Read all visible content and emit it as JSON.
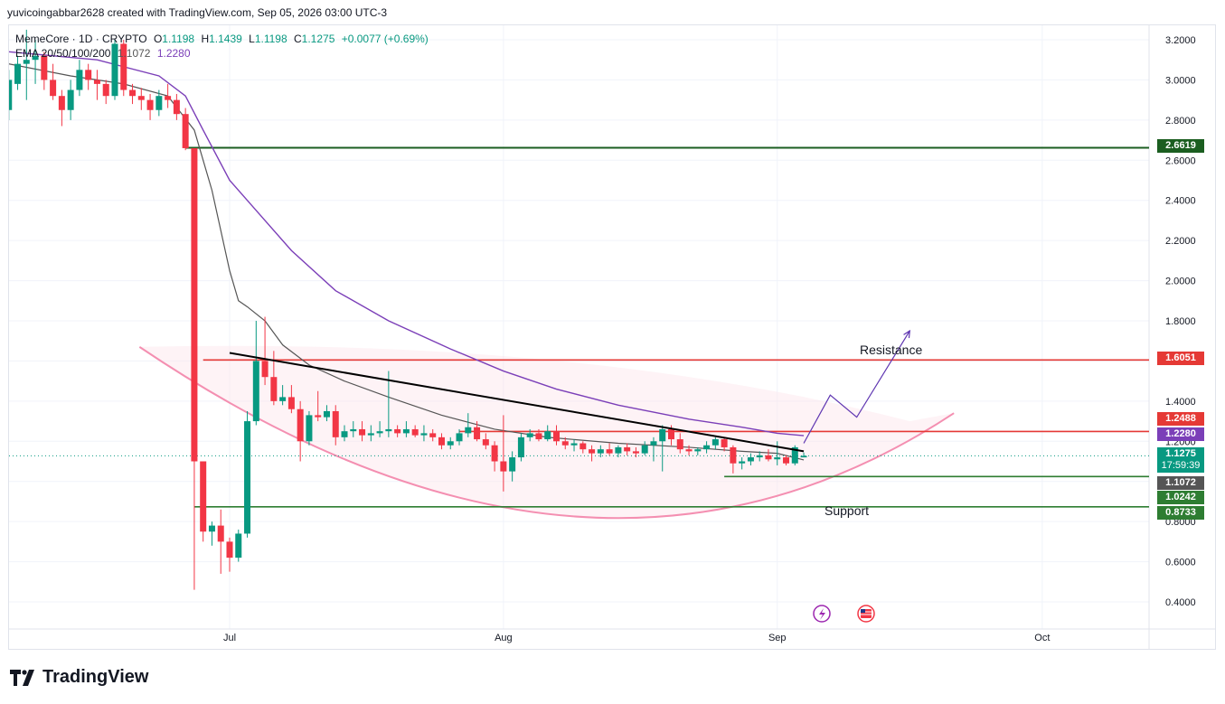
{
  "header": {
    "text": "yuvicoingabbar2628 created with TradingView.com, Sep 05, 2026 03:00 UTC-3"
  },
  "legend": {
    "symbol": "MemeCore · 1D · CRYPTO",
    "open_label": "O",
    "open": "1.1198",
    "high_label": "H",
    "high": "1.1439",
    "low_label": "L",
    "low": "1.1198",
    "close_label": "C",
    "close": "1.1275",
    "change": "+0.0077 (+0.69%)",
    "ema_label": "EMA 20/50/100/200",
    "ema_fast": "1.1072",
    "ema_slow": "1.2280"
  },
  "price_tags": {
    "level_top": "2.6619",
    "resistance": "1.6051",
    "level_mid": "1.2488",
    "ema_slow": "1.2280",
    "last_price": "1.1275",
    "countdown": "17:59:39",
    "ema_fast": "1.1072",
    "support_top": "1.0242",
    "support_bottom": "0.8733"
  },
  "annotations": {
    "resistance": "Resistance",
    "support": "Support"
  },
  "brand": {
    "name": "TradingView"
  },
  "colors": {
    "up": "#089981",
    "down": "#f23645",
    "ema_fast": "#555555",
    "ema_slow": "#7b3fb8",
    "support_line": "#2e7d32",
    "resistance_line": "#e53935",
    "arc": "#f48fb1",
    "projection": "#5e35b1",
    "trendline": "#000000"
  },
  "chart_data": {
    "type": "candlestick",
    "title": "MemeCore · 1D · CRYPTO",
    "ylim": [
      0.4,
      3.2
    ],
    "y_ticks": [
      "3.2000",
      "3.0000",
      "2.8000",
      "2.6000",
      "2.4000",
      "2.2000",
      "2.0000",
      "1.8000",
      "1.6000",
      "1.4000",
      "1.2000",
      "1.0000",
      "0.8000",
      "0.6000",
      "0.4000"
    ],
    "x_ticks": [
      {
        "label": "Jul",
        "day": 0
      },
      {
        "label": "Aug",
        "day": 31
      },
      {
        "label": "Sep",
        "day": 62
      },
      {
        "label": "Oct",
        "day": 92
      }
    ],
    "candles": [
      {
        "d": -25,
        "o": 2.85,
        "h": 3.05,
        "l": 2.8,
        "c": 3.0
      },
      {
        "d": -24,
        "o": 2.98,
        "h": 3.12,
        "l": 2.95,
        "c": 3.08
      },
      {
        "d": -23,
        "o": 3.08,
        "h": 3.25,
        "l": 2.9,
        "c": 3.1
      },
      {
        "d": -22,
        "o": 3.1,
        "h": 3.2,
        "l": 2.98,
        "c": 3.12
      },
      {
        "d": -21,
        "o": 3.12,
        "h": 3.14,
        "l": 2.95,
        "c": 3.0
      },
      {
        "d": -20,
        "o": 3.0,
        "h": 3.08,
        "l": 2.9,
        "c": 2.92
      },
      {
        "d": -19,
        "o": 2.92,
        "h": 2.95,
        "l": 2.77,
        "c": 2.85
      },
      {
        "d": -18,
        "o": 2.85,
        "h": 3.0,
        "l": 2.8,
        "c": 2.95
      },
      {
        "d": -17,
        "o": 2.95,
        "h": 3.1,
        "l": 2.92,
        "c": 3.05
      },
      {
        "d": -16,
        "o": 3.05,
        "h": 3.08,
        "l": 2.95,
        "c": 3.0
      },
      {
        "d": -15,
        "o": 3.0,
        "h": 3.05,
        "l": 2.9,
        "c": 2.98
      },
      {
        "d": -14,
        "o": 2.98,
        "h": 3.0,
        "l": 2.88,
        "c": 2.92
      },
      {
        "d": -13,
        "o": 2.92,
        "h": 3.2,
        "l": 2.9,
        "c": 3.18
      },
      {
        "d": -12,
        "o": 3.18,
        "h": 3.2,
        "l": 2.92,
        "c": 2.95
      },
      {
        "d": -11,
        "o": 2.95,
        "h": 2.98,
        "l": 2.88,
        "c": 2.92
      },
      {
        "d": -10,
        "o": 2.92,
        "h": 2.96,
        "l": 2.85,
        "c": 2.9
      },
      {
        "d": -9,
        "o": 2.9,
        "h": 2.93,
        "l": 2.8,
        "c": 2.85
      },
      {
        "d": -8,
        "o": 2.85,
        "h": 2.95,
        "l": 2.82,
        "c": 2.92
      },
      {
        "d": -7,
        "o": 2.92,
        "h": 2.98,
        "l": 2.86,
        "c": 2.9
      },
      {
        "d": -6,
        "o": 2.9,
        "h": 2.93,
        "l": 2.8,
        "c": 2.83
      },
      {
        "d": -5,
        "o": 2.83,
        "h": 2.86,
        "l": 2.65,
        "c": 2.66
      },
      {
        "d": -4,
        "o": 2.66,
        "h": 2.66,
        "l": 0.46,
        "c": 1.1
      },
      {
        "d": -3,
        "o": 1.1,
        "h": 1.1,
        "l": 0.7,
        "c": 0.75
      },
      {
        "d": -2,
        "o": 0.75,
        "h": 0.8,
        "l": 0.68,
        "c": 0.78
      },
      {
        "d": -1,
        "o": 0.78,
        "h": 0.86,
        "l": 0.54,
        "c": 0.7
      },
      {
        "d": 0,
        "o": 0.7,
        "h": 0.72,
        "l": 0.55,
        "c": 0.62
      },
      {
        "d": 1,
        "o": 0.62,
        "h": 0.76,
        "l": 0.6,
        "c": 0.74
      },
      {
        "d": 2,
        "o": 0.74,
        "h": 1.35,
        "l": 0.72,
        "c": 1.3
      },
      {
        "d": 3,
        "o": 1.3,
        "h": 1.8,
        "l": 1.28,
        "c": 1.6
      },
      {
        "d": 4,
        "o": 1.6,
        "h": 1.82,
        "l": 1.48,
        "c": 1.52
      },
      {
        "d": 5,
        "o": 1.52,
        "h": 1.65,
        "l": 1.38,
        "c": 1.4
      },
      {
        "d": 6,
        "o": 1.4,
        "h": 1.48,
        "l": 1.38,
        "c": 1.42
      },
      {
        "d": 7,
        "o": 1.42,
        "h": 1.48,
        "l": 1.34,
        "c": 1.36
      },
      {
        "d": 8,
        "o": 1.36,
        "h": 1.4,
        "l": 1.1,
        "c": 1.2
      },
      {
        "d": 9,
        "o": 1.2,
        "h": 1.35,
        "l": 1.18,
        "c": 1.33
      },
      {
        "d": 10,
        "o": 1.33,
        "h": 1.45,
        "l": 1.3,
        "c": 1.32
      },
      {
        "d": 11,
        "o": 1.32,
        "h": 1.38,
        "l": 1.3,
        "c": 1.35
      },
      {
        "d": 12,
        "o": 1.35,
        "h": 1.38,
        "l": 1.18,
        "c": 1.22
      },
      {
        "d": 13,
        "o": 1.22,
        "h": 1.28,
        "l": 1.2,
        "c": 1.25
      },
      {
        "d": 14,
        "o": 1.25,
        "h": 1.3,
        "l": 1.22,
        "c": 1.26
      },
      {
        "d": 15,
        "o": 1.26,
        "h": 1.3,
        "l": 1.2,
        "c": 1.23
      },
      {
        "d": 16,
        "o": 1.23,
        "h": 1.28,
        "l": 1.2,
        "c": 1.24
      },
      {
        "d": 17,
        "o": 1.24,
        "h": 1.3,
        "l": 1.22,
        "c": 1.25
      },
      {
        "d": 18,
        "o": 1.25,
        "h": 1.55,
        "l": 1.22,
        "c": 1.26
      },
      {
        "d": 19,
        "o": 1.26,
        "h": 1.28,
        "l": 1.22,
        "c": 1.24
      },
      {
        "d": 20,
        "o": 1.24,
        "h": 1.3,
        "l": 1.22,
        "c": 1.26
      },
      {
        "d": 21,
        "o": 1.26,
        "h": 1.28,
        "l": 1.22,
        "c": 1.23
      },
      {
        "d": 22,
        "o": 1.23,
        "h": 1.28,
        "l": 1.2,
        "c": 1.24
      },
      {
        "d": 23,
        "o": 1.24,
        "h": 1.26,
        "l": 1.2,
        "c": 1.22
      },
      {
        "d": 24,
        "o": 1.22,
        "h": 1.24,
        "l": 1.16,
        "c": 1.18
      },
      {
        "d": 25,
        "o": 1.18,
        "h": 1.22,
        "l": 1.16,
        "c": 1.2
      },
      {
        "d": 26,
        "o": 1.2,
        "h": 1.26,
        "l": 1.18,
        "c": 1.24
      },
      {
        "d": 27,
        "o": 1.24,
        "h": 1.34,
        "l": 1.22,
        "c": 1.27
      },
      {
        "d": 28,
        "o": 1.27,
        "h": 1.3,
        "l": 1.2,
        "c": 1.21
      },
      {
        "d": 29,
        "o": 1.21,
        "h": 1.24,
        "l": 1.16,
        "c": 1.18
      },
      {
        "d": 30,
        "o": 1.18,
        "h": 1.2,
        "l": 1.05,
        "c": 1.1
      },
      {
        "d": 31,
        "o": 1.1,
        "h": 1.33,
        "l": 0.95,
        "c": 1.05
      },
      {
        "d": 32,
        "o": 1.05,
        "h": 1.15,
        "l": 1.0,
        "c": 1.12
      },
      {
        "d": 33,
        "o": 1.12,
        "h": 1.24,
        "l": 1.1,
        "c": 1.22
      },
      {
        "d": 34,
        "o": 1.22,
        "h": 1.26,
        "l": 1.2,
        "c": 1.24
      },
      {
        "d": 35,
        "o": 1.24,
        "h": 1.26,
        "l": 1.2,
        "c": 1.21
      },
      {
        "d": 36,
        "o": 1.21,
        "h": 1.28,
        "l": 1.2,
        "c": 1.25
      },
      {
        "d": 37,
        "o": 1.25,
        "h": 1.28,
        "l": 1.18,
        "c": 1.2
      },
      {
        "d": 38,
        "o": 1.2,
        "h": 1.22,
        "l": 1.16,
        "c": 1.18
      },
      {
        "d": 39,
        "o": 1.18,
        "h": 1.21,
        "l": 1.15,
        "c": 1.19
      },
      {
        "d": 40,
        "o": 1.19,
        "h": 1.2,
        "l": 1.14,
        "c": 1.16
      },
      {
        "d": 41,
        "o": 1.16,
        "h": 1.18,
        "l": 1.1,
        "c": 1.14
      },
      {
        "d": 42,
        "o": 1.14,
        "h": 1.18,
        "l": 1.12,
        "c": 1.16
      },
      {
        "d": 43,
        "o": 1.16,
        "h": 1.19,
        "l": 1.13,
        "c": 1.14
      },
      {
        "d": 44,
        "o": 1.14,
        "h": 1.18,
        "l": 1.12,
        "c": 1.17
      },
      {
        "d": 45,
        "o": 1.17,
        "h": 1.19,
        "l": 1.13,
        "c": 1.15
      },
      {
        "d": 46,
        "o": 1.15,
        "h": 1.17,
        "l": 1.12,
        "c": 1.14
      },
      {
        "d": 47,
        "o": 1.14,
        "h": 1.2,
        "l": 1.13,
        "c": 1.18
      },
      {
        "d": 48,
        "o": 1.18,
        "h": 1.22,
        "l": 1.1,
        "c": 1.2
      },
      {
        "d": 49,
        "o": 1.2,
        "h": 1.28,
        "l": 1.05,
        "c": 1.26
      },
      {
        "d": 50,
        "o": 1.26,
        "h": 1.28,
        "l": 1.18,
        "c": 1.21
      },
      {
        "d": 51,
        "o": 1.21,
        "h": 1.24,
        "l": 1.14,
        "c": 1.16
      },
      {
        "d": 52,
        "o": 1.16,
        "h": 1.18,
        "l": 1.13,
        "c": 1.15
      },
      {
        "d": 53,
        "o": 1.15,
        "h": 1.17,
        "l": 1.13,
        "c": 1.16
      },
      {
        "d": 54,
        "o": 1.16,
        "h": 1.2,
        "l": 1.14,
        "c": 1.18
      },
      {
        "d": 55,
        "o": 1.18,
        "h": 1.22,
        "l": 1.16,
        "c": 1.21
      },
      {
        "d": 56,
        "o": 1.21,
        "h": 1.22,
        "l": 1.15,
        "c": 1.17
      },
      {
        "d": 57,
        "o": 1.17,
        "h": 1.18,
        "l": 1.04,
        "c": 1.09
      },
      {
        "d": 58,
        "o": 1.09,
        "h": 1.12,
        "l": 1.06,
        "c": 1.1
      },
      {
        "d": 59,
        "o": 1.1,
        "h": 1.14,
        "l": 1.08,
        "c": 1.12
      },
      {
        "d": 60,
        "o": 1.12,
        "h": 1.15,
        "l": 1.1,
        "c": 1.13
      },
      {
        "d": 61,
        "o": 1.13,
        "h": 1.16,
        "l": 1.1,
        "c": 1.11
      },
      {
        "d": 62,
        "o": 1.11,
        "h": 1.2,
        "l": 1.08,
        "c": 1.12
      },
      {
        "d": 63,
        "o": 1.12,
        "h": 1.13,
        "l": 1.08,
        "c": 1.09
      },
      {
        "d": 64,
        "o": 1.09,
        "h": 1.18,
        "l": 1.08,
        "c": 1.17
      },
      {
        "d": 65,
        "o": 1.1198,
        "h": 1.1439,
        "l": 1.1198,
        "c": 1.1275
      }
    ],
    "ema_fast": [
      {
        "d": -25,
        "v": 3.08
      },
      {
        "d": -18,
        "v": 3.02
      },
      {
        "d": -12,
        "v": 2.98
      },
      {
        "d": -7,
        "v": 2.92
      },
      {
        "d": -4,
        "v": 2.75
      },
      {
        "d": -2,
        "v": 2.45
      },
      {
        "d": 0,
        "v": 2.05
      },
      {
        "d": 1,
        "v": 1.9
      },
      {
        "d": 2,
        "v": 1.87
      },
      {
        "d": 4,
        "v": 1.8
      },
      {
        "d": 6,
        "v": 1.68
      },
      {
        "d": 9,
        "v": 1.58
      },
      {
        "d": 13,
        "v": 1.5
      },
      {
        "d": 18,
        "v": 1.42
      },
      {
        "d": 24,
        "v": 1.33
      },
      {
        "d": 30,
        "v": 1.26
      },
      {
        "d": 36,
        "v": 1.22
      },
      {
        "d": 44,
        "v": 1.19
      },
      {
        "d": 52,
        "v": 1.17
      },
      {
        "d": 58,
        "v": 1.15
      },
      {
        "d": 62,
        "v": 1.14
      },
      {
        "d": 65,
        "v": 1.1072
      }
    ],
    "ema_slow": [
      {
        "d": -25,
        "v": 3.14
      },
      {
        "d": -15,
        "v": 3.1
      },
      {
        "d": -8,
        "v": 3.02
      },
      {
        "d": -5,
        "v": 2.92
      },
      {
        "d": -3,
        "v": 2.75
      },
      {
        "d": 0,
        "v": 2.5
      },
      {
        "d": 3,
        "v": 2.35
      },
      {
        "d": 7,
        "v": 2.15
      },
      {
        "d": 12,
        "v": 1.95
      },
      {
        "d": 18,
        "v": 1.8
      },
      {
        "d": 25,
        "v": 1.66
      },
      {
        "d": 31,
        "v": 1.55
      },
      {
        "d": 37,
        "v": 1.46
      },
      {
        "d": 44,
        "v": 1.38
      },
      {
        "d": 52,
        "v": 1.31
      },
      {
        "d": 58,
        "v": 1.27
      },
      {
        "d": 62,
        "v": 1.24
      },
      {
        "d": 65,
        "v": 1.228
      }
    ],
    "levels": [
      {
        "name": "level_top",
        "value": 2.6619,
        "from_day": -5
      },
      {
        "name": "resistance",
        "value": 1.6051,
        "from_day": -3
      },
      {
        "name": "level_mid",
        "value": 1.2488,
        "from_day": 26
      },
      {
        "name": "support_top",
        "value": 1.0242,
        "from_day": 56
      },
      {
        "name": "support_bottom",
        "value": 0.8733,
        "from_day": -4
      }
    ],
    "trendline": [
      {
        "d": 0,
        "v": 1.64
      },
      {
        "d": 65,
        "v": 1.15
      }
    ],
    "projection": [
      {
        "d": 65,
        "v": 1.19
      },
      {
        "d": 68,
        "v": 1.43
      },
      {
        "d": 71,
        "v": 1.32
      },
      {
        "d": 77,
        "v": 1.75
      }
    ],
    "last_price": 1.1275
  }
}
